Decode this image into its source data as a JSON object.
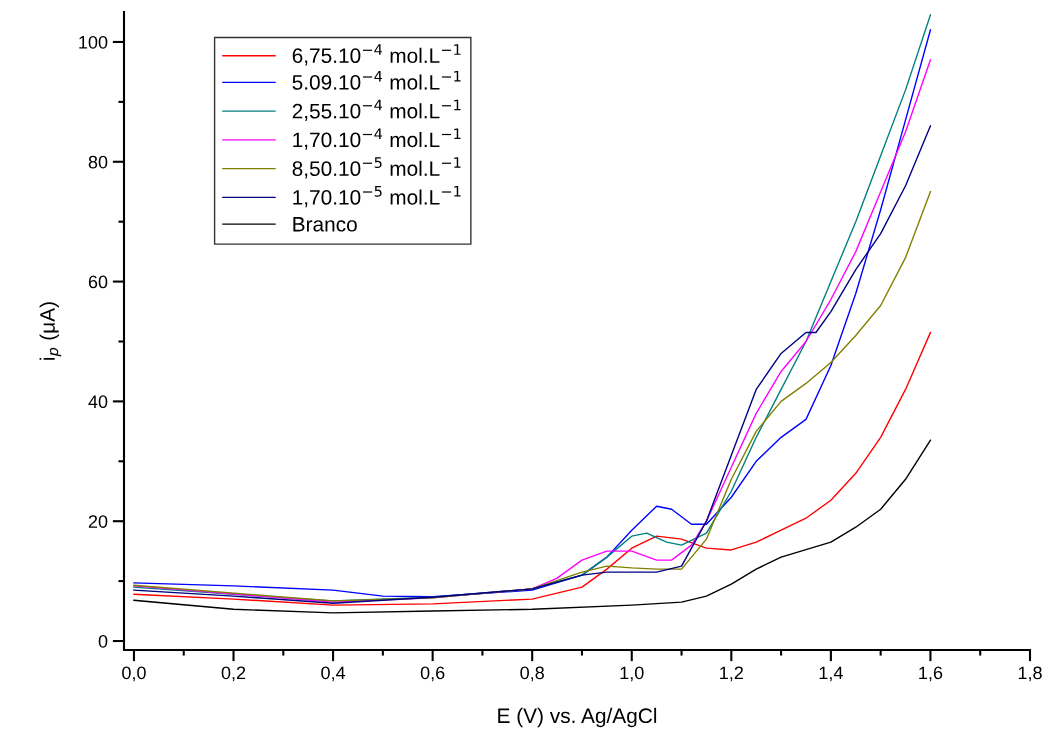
{
  "chart_data": {
    "type": "line",
    "xlabel": "E (V) vs. Ag/AgCl",
    "ylabel": "i$_{p}$ (μA)",
    "xlim": [
      -0.02,
      1.8
    ],
    "ylim": [
      -1.5,
      105
    ],
    "xticks": [
      {
        "value": 0,
        "label": "0,0"
      },
      {
        "value": 0.2,
        "label": "0,2"
      },
      {
        "value": 0.4,
        "label": "0,4"
      },
      {
        "value": 0.6,
        "label": "0,6"
      },
      {
        "value": 0.8,
        "label": "0,8"
      },
      {
        "value": 1.0,
        "label": "1,0"
      },
      {
        "value": 1.2,
        "label": "1,2"
      },
      {
        "value": 1.4,
        "label": "1,4"
      },
      {
        "value": 1.6,
        "label": "1,6"
      },
      {
        "value": 1.8,
        "label": "1,8"
      }
    ],
    "yticks": [
      0,
      20,
      40,
      60,
      80,
      100
    ],
    "grid": false,
    "legend": "top left",
    "line_style": "solid",
    "marker": "none",
    "series": [
      {
        "name": "6,75.10$^{−4}$ mol.L$^{−1}$",
        "color": "#ff0000",
        "x": [
          0,
          0.2,
          0.4,
          0.6,
          0.8,
          0.9,
          0.95,
          1.0,
          1.05,
          1.1,
          1.15,
          1.2,
          1.25,
          1.3,
          1.35,
          1.4,
          1.45,
          1.5,
          1.55,
          1.6
        ],
        "values": [
          7.8,
          7,
          6,
          6.2,
          7,
          9,
          12,
          15.5,
          17.5,
          17,
          15.5,
          15.2,
          16.5,
          18.5,
          20.5,
          23.5,
          28,
          34,
          42,
          51.5
        ]
      },
      {
        "name": "5.09.10$^{−4}$ mol.L$^{−1}$",
        "color": "#0000ff",
        "x": [
          0,
          0.2,
          0.4,
          0.5,
          0.6,
          0.8,
          0.9,
          0.95,
          1.0,
          1.05,
          1.08,
          1.12,
          1.15,
          1.2,
          1.25,
          1.3,
          1.35,
          1.4,
          1.45,
          1.5,
          1.55,
          1.6
        ],
        "values": [
          9.7,
          9.2,
          8.5,
          7.5,
          7.4,
          8.5,
          11,
          14,
          18.5,
          22.5,
          22,
          19.5,
          19.5,
          24,
          30,
          34,
          37,
          46,
          58,
          72,
          87,
          102
        ]
      },
      {
        "name": "2,55.10$^{−4}$ mol.L$^{−1}$",
        "color": "#008080",
        "x": [
          0,
          0.2,
          0.4,
          0.6,
          0.8,
          0.9,
          0.95,
          1.0,
          1.03,
          1.07,
          1.1,
          1.15,
          1.2,
          1.25,
          1.3,
          1.35,
          1.4,
          1.45,
          1.5,
          1.55,
          1.6
        ],
        "values": [
          9.0,
          7.8,
          6.7,
          7.3,
          8.7,
          11,
          14,
          17.5,
          18,
          16.5,
          16,
          18,
          25,
          34,
          42,
          50,
          60,
          70,
          81,
          92,
          104.5
        ]
      },
      {
        "name": "1,70.10$^{−4}$ mol.L$^{−1}$",
        "color": "#ff00ff",
        "x": [
          0,
          0.4,
          0.6,
          0.8,
          0.85,
          0.9,
          0.95,
          1.0,
          1.05,
          1.08,
          1.12,
          1.15,
          1.2,
          1.25,
          1.3,
          1.35,
          1.4,
          1.45,
          1.5,
          1.55,
          1.6
        ],
        "values": [
          9.2,
          6.5,
          7.2,
          8.7,
          10.5,
          13.5,
          15,
          15,
          13.5,
          13.5,
          16,
          20,
          29,
          38,
          45,
          50,
          57,
          65,
          75,
          85,
          97
        ]
      },
      {
        "name": "8,50.10$^{−5}$ mol.L$^{−1}$",
        "color": "#808000",
        "x": [
          0,
          0.4,
          0.6,
          0.8,
          0.9,
          0.95,
          1.0,
          1.05,
          1.1,
          1.15,
          1.2,
          1.25,
          1.3,
          1.35,
          1.4,
          1.45,
          1.5,
          1.55,
          1.6
        ],
        "values": [
          9.3,
          6.7,
          7.2,
          8.7,
          11.5,
          12.5,
          12.2,
          12,
          12,
          17,
          27,
          35,
          40,
          43,
          46.5,
          51,
          56,
          64,
          75
        ]
      },
      {
        "name": "1,70.10$^{−5}$ mol.L$^{−1}$",
        "color": "#000080",
        "x": [
          0,
          0.2,
          0.4,
          0.6,
          0.8,
          0.9,
          0.95,
          1.0,
          1.05,
          1.1,
          1.15,
          1.2,
          1.25,
          1.3,
          1.35,
          1.37,
          1.4,
          1.45,
          1.5,
          1.55,
          1.6
        ],
        "values": [
          8.5,
          7.5,
          6.3,
          7.3,
          8.7,
          11,
          11.5,
          11.5,
          11.5,
          12.5,
          20,
          31,
          42,
          48,
          51.5,
          51.5,
          55,
          62,
          68,
          76,
          86
        ]
      },
      {
        "name": "Branco",
        "color": "#000000",
        "x": [
          0,
          0.2,
          0.4,
          0.6,
          0.8,
          1.0,
          1.1,
          1.15,
          1.2,
          1.25,
          1.3,
          1.4,
          1.45,
          1.5,
          1.55,
          1.6
        ],
        "values": [
          6.8,
          5.3,
          4.7,
          5.0,
          5.3,
          6,
          6.5,
          7.5,
          9.5,
          12,
          14,
          16.5,
          19,
          22,
          27,
          33.5
        ]
      }
    ]
  }
}
